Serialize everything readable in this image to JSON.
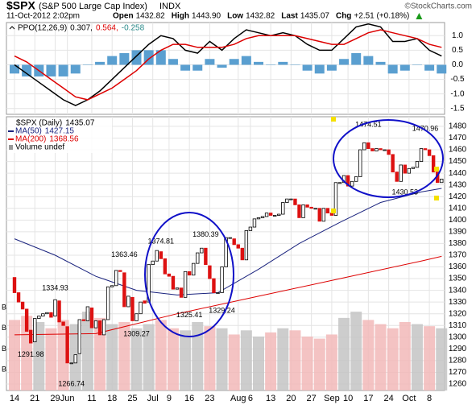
{
  "header": {
    "symbol": "$SPX",
    "name": "(S&P 500 Large Cap Index)",
    "exchange": "INDX",
    "credit": "©StockCharts.com",
    "date": "11-Oct-2012 2:02pm",
    "stats": [
      {
        "label": "Open",
        "value": "1432.82"
      },
      {
        "label": "High",
        "value": "1443.90"
      },
      {
        "label": "Low",
        "value": "1432.82"
      },
      {
        "label": "Last",
        "value": "1435.07"
      },
      {
        "label": "Chg",
        "value": "+2.51 (+0.18%)"
      }
    ]
  },
  "chart_data": [
    {
      "type": "line",
      "legend": {
        "title": "PPO(12,26,9)",
        "entries": [
          "0.307,",
          "0.564,",
          "-0.258"
        ],
        "colors": [
          "#000000",
          "#dd0000",
          "#2a8a8a"
        ]
      },
      "x": [
        0,
        3,
        6,
        9,
        12,
        15,
        18,
        21,
        24,
        27,
        30,
        33,
        36,
        39,
        42,
        45,
        48,
        51,
        54,
        57,
        60,
        63,
        66,
        69,
        72,
        75,
        78,
        81,
        84,
        87,
        90,
        93,
        96,
        99,
        102,
        105
      ],
      "series": [
        {
          "color": "#000000",
          "values": [
            0.0,
            -0.3,
            -0.6,
            -0.9,
            -1.2,
            -1.4,
            -1.2,
            -0.9,
            -0.5,
            -0.1,
            0.3,
            0.7,
            1.0,
            0.9,
            0.5,
            0.4,
            0.8,
            0.5,
            0.9,
            1.2,
            1.1,
            1.0,
            1.1,
            1.0,
            0.7,
            0.5,
            0.5,
            0.9,
            1.3,
            1.4,
            1.3,
            0.8,
            0.8,
            0.9,
            0.5,
            0.3
          ]
        },
        {
          "color": "#dd0000",
          "values": [
            0.3,
            0.1,
            -0.2,
            -0.5,
            -0.8,
            -1.1,
            -1.2,
            -1.0,
            -0.8,
            -0.5,
            -0.2,
            0.2,
            0.5,
            0.7,
            0.7,
            0.6,
            0.6,
            0.6,
            0.7,
            0.9,
            1.0,
            1.0,
            1.0,
            1.0,
            0.9,
            0.8,
            0.7,
            0.7,
            0.9,
            1.1,
            1.2,
            1.1,
            1.0,
            0.9,
            0.7,
            0.6
          ]
        }
      ],
      "histogram": {
        "color": "#5a9fd0",
        "values": [
          -0.3,
          -0.4,
          -0.4,
          -0.4,
          -0.4,
          -0.3,
          0,
          0.1,
          0.3,
          0.4,
          0.5,
          0.5,
          0.5,
          0.2,
          -0.2,
          -0.2,
          0.2,
          -0.1,
          0.2,
          0.3,
          0.1,
          0,
          0.1,
          0,
          -0.2,
          -0.3,
          -0.2,
          0.2,
          0.4,
          0.3,
          0.1,
          -0.3,
          -0.2,
          0,
          -0.2,
          -0.3
        ]
      },
      "ylim": [
        -1.7,
        1.45
      ],
      "yticks": [
        {
          "value": 1,
          "label": "1.0"
        },
        0.5,
        {
          "value": 0,
          "label": "0.0"
        },
        -0.5,
        {
          "value": -1,
          "label": "-1.0"
        },
        -1.5
      ],
      "grid": true
    },
    {
      "type": "candlestick",
      "legend": {
        "title": "$SPX (Daily)",
        "last": "1435.07",
        "volume": "Volume undef"
      },
      "categories": [
        "14",
        null,
        null,
        null,
        null,
        "21",
        null,
        null,
        null,
        null,
        "29",
        null,
        null,
        "Jun",
        null,
        null,
        null,
        null,
        null,
        "11",
        null,
        null,
        null,
        null,
        "18",
        null,
        null,
        null,
        null,
        "25",
        null,
        null,
        null,
        null,
        "Jul",
        null,
        null,
        null,
        "9",
        null,
        null,
        null,
        null,
        "16",
        null,
        null,
        null,
        null,
        "23",
        null,
        null,
        null,
        null,
        null,
        null,
        "Aug",
        null,
        null,
        "6",
        null,
        null,
        null,
        null,
        "13",
        null,
        null,
        null,
        null,
        "20",
        null,
        null,
        null,
        null,
        "27",
        null,
        null,
        null,
        null,
        "Sep",
        null,
        null,
        null,
        "10",
        null,
        null,
        null,
        null,
        "17",
        null,
        null,
        null,
        null,
        "24",
        null,
        null,
        null,
        null,
        "Oct",
        null,
        null,
        null,
        null,
        "8",
        null,
        null,
        null
      ],
      "open": [
        1351,
        1338,
        1330,
        1324,
        1306,
        1296,
        1316,
        1318,
        1320,
        1321,
        1318,
        1331,
        1313,
        1309,
        1278,
        1278,
        1286,
        1315,
        1314,
        1325,
        1308,
        1314,
        1302,
        1315,
        1343,
        1344,
        1357,
        1355,
        1326,
        1334,
        1314,
        1320,
        1331,
        1330,
        1362,
        1365,
        1373,
        1367,
        1354,
        1352,
        1341,
        1342,
        1334,
        1356,
        1353,
        1363,
        1372,
        1376,
        1361,
        1350,
        1338,
        1338,
        1360,
        1385,
        1384,
        1379,
        1376,
        1366,
        1391,
        1394,
        1401,
        1402,
        1403,
        1406,
        1404,
        1404,
        1405,
        1415,
        1418,
        1418,
        1413,
        1402,
        1413,
        1411,
        1410,
        1410,
        1399,
        1410,
        1406,
        1404,
        1432,
        1432,
        1438,
        1429,
        1433,
        1437,
        1460,
        1466,
        1461,
        1459,
        1461,
        1460,
        1460,
        1456,
        1441,
        1433,
        1447,
        1440,
        1444,
        1445,
        1450,
        1461,
        1460,
        1455,
        1441,
        1432
      ],
      "close": [
        1338,
        1330,
        1324,
        1305,
        1295,
        1316,
        1318,
        1320,
        1321,
        1317,
        1332,
        1313,
        1310,
        1278,
        1278,
        1285,
        1315,
        1314,
        1326,
        1308,
        1314,
        1302,
        1315,
        1343,
        1344,
        1357,
        1356,
        1326,
        1335,
        1314,
        1320,
        1330,
        1329,
        1362,
        1365,
        1374,
        1367,
        1354,
        1352,
        1341,
        1342,
        1334,
        1356,
        1353,
        1363,
        1372,
        1376,
        1362,
        1350,
        1338,
        1338,
        1360,
        1385,
        1385,
        1379,
        1376,
        1366,
        1391,
        1394,
        1401,
        1402,
        1403,
        1406,
        1404,
        1404,
        1405,
        1415,
        1418,
        1418,
        1413,
        1402,
        1413,
        1411,
        1410,
        1410,
        1399,
        1410,
        1406,
        1404,
        1432,
        1432,
        1438,
        1429,
        1433,
        1437,
        1460,
        1466,
        1461,
        1459,
        1461,
        1460,
        1460,
        1456,
        1441,
        1433,
        1447,
        1440,
        1444,
        1445,
        1450,
        1461,
        1460,
        1455,
        1441,
        1432,
        1435
      ],
      "up_color": "#000000",
      "down_color": "#dd1111",
      "series": [
        {
          "name": "MA(50)",
          "last": "1427.15",
          "color": "#1a237e",
          "x": [
            0,
            10,
            20,
            30,
            40,
            50,
            60,
            70,
            80,
            90,
            100,
            105
          ],
          "values": [
            1384,
            1370,
            1352,
            1340,
            1336,
            1338,
            1358,
            1380,
            1398,
            1415,
            1424,
            1427
          ]
        },
        {
          "name": "MA(200)",
          "last": "1368.56",
          "color": "#dd0000",
          "x": [
            0,
            20,
            40,
            60,
            80,
            100,
            105
          ],
          "values": [
            1302,
            1303,
            1320,
            1335,
            1350,
            1365,
            1369
          ]
        }
      ],
      "annotations": {
        "x": [
          4,
          10,
          14,
          27,
          30,
          36,
          43,
          47,
          51,
          87,
          96,
          101
        ],
        "values": [
          1291.98,
          1334.93,
          1266.74,
          1363.46,
          1309.27,
          1374.81,
          1325.41,
          1380.39,
          1329.24,
          1474.51,
          1430.53,
          1470.96
        ]
      },
      "volume": {
        "x": [
          0,
          3,
          6,
          9,
          12,
          15,
          18,
          21,
          24,
          27,
          30,
          33,
          36,
          39,
          42,
          45,
          48,
          51,
          54,
          57,
          60,
          63,
          66,
          69,
          72,
          75,
          78,
          81,
          84,
          87,
          90,
          93,
          96,
          99,
          102,
          105
        ],
        "values": [
          3.4,
          3.6,
          3.3,
          3.0,
          3.4,
          3.2,
          3.8,
          3.5,
          3.2,
          3.3,
          3.0,
          3.2,
          3.4,
          3.0,
          2.9,
          3.3,
          3.1,
          3.0,
          2.7,
          2.9,
          2.6,
          2.8,
          3.0,
          2.9,
          2.6,
          2.5,
          2.7,
          3.5,
          3.8,
          3.4,
          3.2,
          3.0,
          3.3,
          3.2,
          3.1,
          3.0
        ],
        "ylim": [
          0,
          13.2
        ],
        "yticks": [
          {
            "value": 1,
            "label": "B"
          },
          {
            "value": 2,
            "label": "B"
          },
          {
            "value": 3,
            "label": "B"
          },
          {
            "value": 4,
            "label": "B"
          }
        ]
      },
      "ylim": [
        1254.5,
        1488.2
      ],
      "yticks": [
        1260,
        1270,
        1280,
        1290,
        1300,
        1310,
        1320,
        1330,
        1340,
        1350,
        1360,
        1370,
        1380,
        1390,
        1400,
        1410,
        1420,
        1430,
        1440,
        1450,
        1460,
        1470,
        1480
      ],
      "grid": true
    }
  ]
}
